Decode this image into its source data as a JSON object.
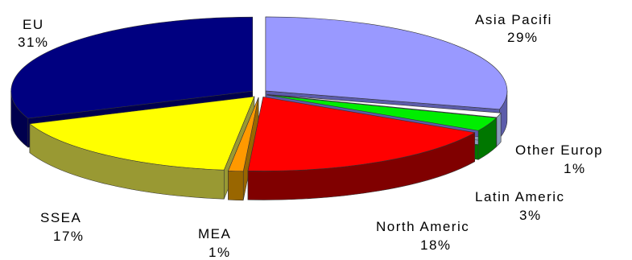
{
  "chart_data": {
    "type": "pie",
    "three_d": true,
    "exploded": true,
    "slices": [
      {
        "label": "Asia Pacifi",
        "value": 29,
        "value_text": "29%",
        "color": "#9999ff",
        "side_color": "#5c5caa"
      },
      {
        "label": "Other Europ",
        "value": 1,
        "value_text": "1%",
        "color": "#ffffff",
        "side_color": "#8a9bbb"
      },
      {
        "label": "Latin Americ",
        "value": 3,
        "value_text": "3%",
        "color": "#00ee00",
        "side_color": "#007700"
      },
      {
        "label": "North Americ",
        "value": 18,
        "value_text": "18%",
        "color": "#ff0000",
        "side_color": "#800000"
      },
      {
        "label": "MEA",
        "value": 1,
        "value_text": "1%",
        "color": "#ff9900",
        "side_color": "#996600"
      },
      {
        "label": "SSEA",
        "value": 17,
        "value_text": "17%",
        "color": "#ffff00",
        "side_color": "#999933"
      },
      {
        "label": "EU",
        "value": 31,
        "value_text": "31%",
        "color": "#000080",
        "side_color": "#00004d"
      }
    ]
  }
}
